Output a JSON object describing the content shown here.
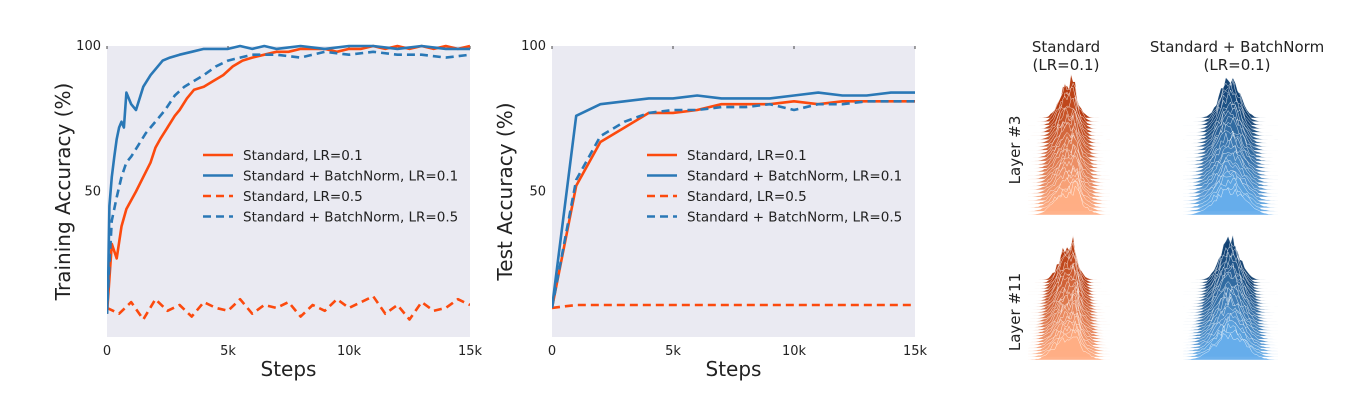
{
  "colors": {
    "standard": "#fc4a0e",
    "batchnorm": "#2a78b6",
    "panel_bg": "#eaeaf2",
    "ridge_orange_dark": "#b4360a",
    "ridge_orange_light": "#ffae85",
    "ridge_blue_dark": "#0e3d6e",
    "ridge_blue_light": "#66adeb"
  },
  "chart_data": [
    {
      "type": "line",
      "xlabel": "Steps",
      "ylabel": "Training Accuracy (%)",
      "xlim": [
        0,
        15000
      ],
      "ylim": [
        0,
        100
      ],
      "xticks": [
        0,
        5000,
        10000,
        15000
      ],
      "xtick_labels": [
        "0",
        "5k",
        "10k",
        "15k"
      ],
      "yticks": [
        50,
        100
      ],
      "ytick_labels": [
        "50",
        "100"
      ],
      "grid": false,
      "legend_position": "center-right",
      "series": [
        {
          "name": "Standard, LR=0.1",
          "style": "solid",
          "color_key": "standard",
          "x": [
            0,
            100,
            200,
            400,
            600,
            800,
            1000,
            1200,
            1500,
            1800,
            2000,
            2200,
            2500,
            2800,
            3000,
            3300,
            3600,
            4000,
            4400,
            4800,
            5200,
            5600,
            6000,
            6500,
            7000,
            7500,
            8000,
            8500,
            9000,
            9500,
            10000,
            10500,
            11000,
            11500,
            12000,
            12500,
            13000,
            13500,
            14000,
            14500,
            15000
          ],
          "y": [
            8,
            20,
            32,
            27,
            38,
            44,
            47,
            50,
            55,
            60,
            65,
            68,
            72,
            76,
            78,
            82,
            85,
            86,
            88,
            90,
            93,
            95,
            96,
            97,
            98,
            98,
            99,
            99,
            99,
            98,
            99,
            99,
            100,
            99,
            100,
            99,
            100,
            99,
            100,
            99,
            100
          ]
        },
        {
          "name": "Standard + BatchNorm, LR=0.1",
          "style": "solid",
          "color_key": "batchnorm",
          "x": [
            0,
            50,
            100,
            200,
            300,
            400,
            500,
            600,
            700,
            800,
            1000,
            1200,
            1500,
            1800,
            2000,
            2300,
            2600,
            3000,
            3500,
            4000,
            4500,
            5000,
            5500,
            6000,
            6500,
            7000,
            8000,
            9000,
            10000,
            11000,
            12000,
            13000,
            14000,
            15000
          ],
          "y": [
            8,
            20,
            45,
            55,
            62,
            68,
            72,
            74,
            72,
            84,
            80,
            78,
            86,
            90,
            92,
            95,
            96,
            97,
            98,
            99,
            99,
            99,
            100,
            99,
            100,
            99,
            100,
            99,
            100,
            100,
            99,
            100,
            99,
            99
          ]
        },
        {
          "name": "Standard, LR=0.5",
          "style": "dashed",
          "color_key": "standard",
          "x": [
            0,
            500,
            1000,
            1500,
            2000,
            2500,
            3000,
            3500,
            4000,
            4500,
            5000,
            5500,
            6000,
            6500,
            7000,
            7500,
            8000,
            8500,
            9000,
            9500,
            10000,
            10500,
            11000,
            11500,
            12000,
            12500,
            13000,
            13500,
            14000,
            14500,
            15000
          ],
          "y": [
            10,
            8,
            12,
            6,
            13,
            9,
            11,
            7,
            12,
            10,
            9,
            13,
            8,
            11,
            10,
            12,
            7,
            11,
            9,
            13,
            10,
            12,
            14,
            8,
            11,
            6,
            12,
            9,
            10,
            13,
            11
          ]
        },
        {
          "name": "Standard + BatchNorm, LR=0.5",
          "style": "dashed",
          "color_key": "batchnorm",
          "x": [
            0,
            100,
            200,
            400,
            600,
            800,
            1000,
            1300,
            1600,
            2000,
            2400,
            2800,
            3200,
            3600,
            4000,
            4500,
            5000,
            5500,
            6000,
            7000,
            8000,
            9000,
            10000,
            11000,
            12000,
            13000,
            14000,
            15000
          ],
          "y": [
            8,
            25,
            40,
            48,
            55,
            60,
            62,
            66,
            70,
            74,
            78,
            83,
            86,
            88,
            90,
            93,
            95,
            96,
            97,
            97,
            96,
            98,
            97,
            98,
            97,
            97,
            96,
            97
          ]
        }
      ]
    },
    {
      "type": "line",
      "xlabel": "Steps",
      "ylabel": "Test Accuracy (%)",
      "xlim": [
        0,
        15000
      ],
      "ylim": [
        0,
        100
      ],
      "xticks": [
        0,
        5000,
        10000,
        15000
      ],
      "xtick_labels": [
        "0",
        "5k",
        "10k",
        "15k"
      ],
      "yticks": [
        50,
        100
      ],
      "ytick_labels": [
        "50",
        "100"
      ],
      "grid": false,
      "legend_position": "center-right",
      "series": [
        {
          "name": "Standard, LR=0.1",
          "style": "solid",
          "color_key": "standard",
          "x": [
            0,
            1000,
            2000,
            3000,
            4000,
            5000,
            6000,
            7000,
            8000,
            9000,
            10000,
            11000,
            12000,
            13000,
            14000,
            15000
          ],
          "y": [
            10,
            52,
            67,
            72,
            77,
            77,
            78,
            80,
            80,
            80,
            81,
            80,
            81,
            81,
            81,
            81
          ]
        },
        {
          "name": "Standard + BatchNorm, LR=0.1",
          "style": "solid",
          "color_key": "batchnorm",
          "x": [
            0,
            1000,
            2000,
            3000,
            4000,
            5000,
            6000,
            7000,
            8000,
            9000,
            10000,
            11000,
            12000,
            13000,
            14000,
            15000
          ],
          "y": [
            10,
            76,
            80,
            81,
            82,
            82,
            83,
            82,
            82,
            82,
            83,
            84,
            83,
            83,
            84,
            84
          ]
        },
        {
          "name": "Standard, LR=0.5",
          "style": "dashed",
          "color_key": "standard",
          "x": [
            0,
            1000,
            2000,
            3000,
            4000,
            5000,
            6000,
            7000,
            8000,
            9000,
            10000,
            11000,
            12000,
            13000,
            14000,
            15000
          ],
          "y": [
            10,
            11,
            11,
            11,
            11,
            11,
            11,
            11,
            11,
            11,
            11,
            11,
            11,
            11,
            11,
            11
          ]
        },
        {
          "name": "Standard + BatchNorm, LR=0.5",
          "style": "dashed",
          "color_key": "batchnorm",
          "x": [
            0,
            1000,
            2000,
            3000,
            4000,
            5000,
            6000,
            7000,
            8000,
            9000,
            10000,
            11000,
            12000,
            13000,
            14000,
            15000
          ],
          "y": [
            10,
            54,
            69,
            74,
            77,
            78,
            78,
            79,
            79,
            80,
            78,
            80,
            80,
            81,
            81,
            81
          ]
        }
      ]
    },
    {
      "type": "ridgeline",
      "column_titles": [
        {
          "line1": "Standard",
          "line2": "(LR=0.1)"
        },
        {
          "line1": "Standard + BatchNorm",
          "line2": "(LR=0.1)"
        }
      ],
      "row_labels": [
        "Layer #3",
        "Layer #11"
      ],
      "panels": [
        {
          "row": 0,
          "col": 0,
          "color_dark_key": "ridge_orange_dark",
          "color_light_key": "ridge_orange_light",
          "ridges": 28,
          "peak_spread": "wide",
          "twin_peak": true
        },
        {
          "row": 0,
          "col": 1,
          "color_dark_key": "ridge_blue_dark",
          "color_light_key": "ridge_blue_light",
          "ridges": 28,
          "peak_spread": "wide",
          "twin_peak": false
        },
        {
          "row": 1,
          "col": 0,
          "color_dark_key": "ridge_orange_dark",
          "color_light_key": "ridge_orange_light",
          "ridges": 28,
          "peak_spread": "wide",
          "twin_peak": true
        },
        {
          "row": 1,
          "col": 1,
          "color_dark_key": "ridge_blue_dark",
          "color_light_key": "ridge_blue_light",
          "ridges": 28,
          "peak_spread": "wide",
          "twin_peak": false
        }
      ]
    }
  ]
}
